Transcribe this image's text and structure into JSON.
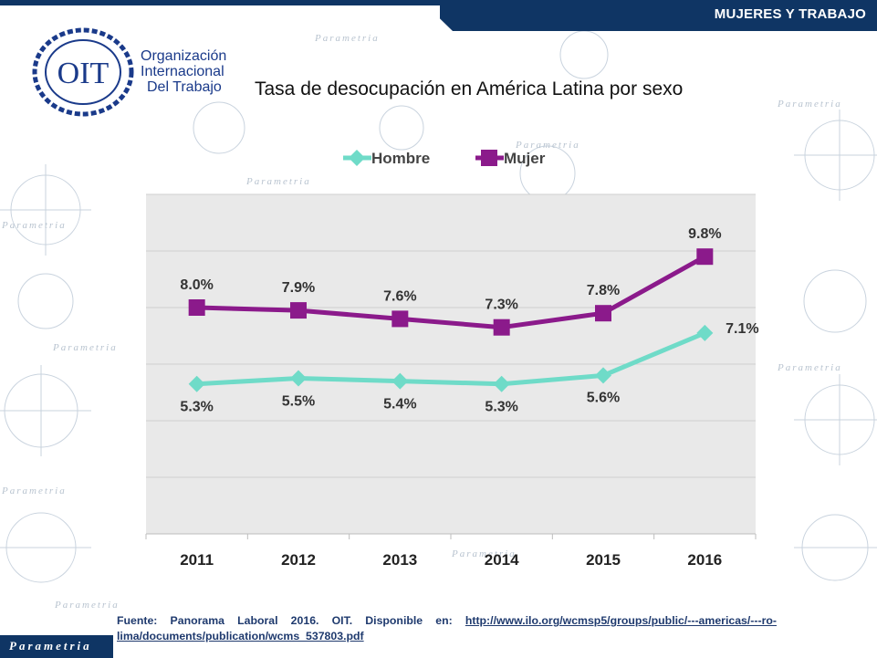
{
  "header": {
    "section_label": "MUJERES Y TRABAJO"
  },
  "org": {
    "logo_text": "OIT",
    "name_lines": [
      "Organización",
      "Internacional",
      "Del Trabajo"
    ]
  },
  "watermark": {
    "brand": "Parametria"
  },
  "footer": {
    "brand": "Parametria",
    "source_prefix": "Fuente: Panorama Laboral 2016. OIT. Disponible en: ",
    "source_link": "http://www.ilo.org/wcmsp5/groups/public/---americas/---ro-lima/documents/publication/wcms_537803.pdf"
  },
  "colors": {
    "hombre": "#6fdbc8",
    "mujer": "#8b1a8b",
    "navy": "#0f3564",
    "plot_bg": "#e9e9e9"
  },
  "chart_data": {
    "type": "line",
    "title": "Tasa de desocupación en América Latina por sexo",
    "categories": [
      "2011",
      "2012",
      "2013",
      "2014",
      "2015",
      "2016"
    ],
    "series": [
      {
        "name": "Hombre",
        "values": [
          5.3,
          5.5,
          5.4,
          5.3,
          5.6,
          7.1
        ],
        "labels": [
          "5.3%",
          "5.5%",
          "5.4%",
          "5.3%",
          "5.6%",
          "7.1%"
        ],
        "marker": "diamond"
      },
      {
        "name": "Mujer",
        "values": [
          8.0,
          7.9,
          7.6,
          7.3,
          7.8,
          9.8
        ],
        "labels": [
          "8.0%",
          "7.9%",
          "7.6%",
          "7.3%",
          "7.8%",
          "9.8%"
        ],
        "marker": "square"
      }
    ],
    "ylim": [
      0,
      12
    ],
    "grid": true,
    "legend": "top-center"
  }
}
